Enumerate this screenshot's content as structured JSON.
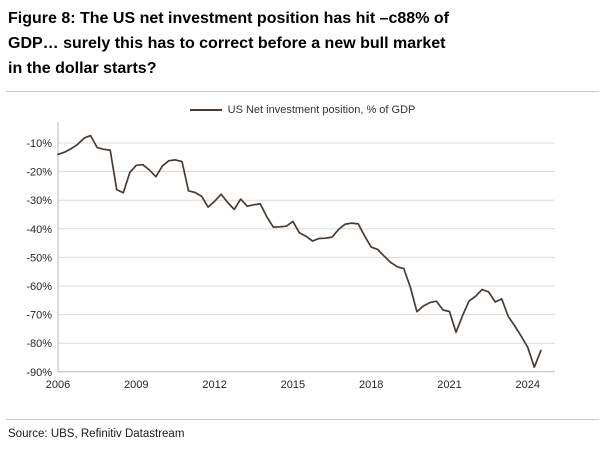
{
  "figure": {
    "title_lines": [
      "Figure 8: The US net investment position has hit –c88% of",
      "GDP… surely this has to correct before a new bull market",
      "in the dollar starts?"
    ]
  },
  "legend": {
    "label": "US Net investment position, % of GDP"
  },
  "source": {
    "text": "Source: UBS, Refinitiv Datastream"
  },
  "colors": {
    "line": "#473c33",
    "grid": "#dcdcdc",
    "axis": "#b8b8b8",
    "tick_text": "#262626"
  },
  "chart_data": {
    "type": "line",
    "title": "US Net investment position, % of GDP",
    "xlabel": "",
    "ylabel": "",
    "x_start": 2006.0,
    "x_step": 0.25,
    "x_end": 2024.5,
    "frequency": "quarterly",
    "grid": "horizontal",
    "legend_position": "top-center",
    "ylim": [
      -90,
      -4
    ],
    "y_tick_values": [
      -10,
      -20,
      -30,
      -40,
      -50,
      -60,
      -70,
      -80,
      -90
    ],
    "y_tick_labels": [
      "-10%",
      "-20%",
      "-30%",
      "-40%",
      "-50%",
      "-60%",
      "-70%",
      "-80%",
      "-90%"
    ],
    "x_tick_years": [
      2006,
      2009,
      2012,
      2015,
      2018,
      2021,
      2024
    ],
    "x_tick_labels": [
      "2006",
      "2009",
      "2012",
      "2015",
      "2018",
      "2021",
      "2024"
    ],
    "series": [
      {
        "name": "US Net investment position, % of GDP",
        "values": [
          -14.0,
          -13.2,
          -12.0,
          -10.5,
          -8.3,
          -7.4,
          -11.6,
          -12.2,
          -12.5,
          -26.3,
          -27.4,
          -20.3,
          -17.8,
          -17.6,
          -19.4,
          -21.8,
          -18.0,
          -16.2,
          -15.9,
          -16.5,
          -26.7,
          -27.3,
          -28.6,
          -32.4,
          -30.4,
          -27.9,
          -30.8,
          -33.2,
          -29.6,
          -32.1,
          -31.6,
          -31.3,
          -35.8,
          -39.4,
          -39.3,
          -39.1,
          -37.4,
          -41.4,
          -42.6,
          -44.3,
          -43.4,
          -43.3,
          -42.9,
          -40.2,
          -38.4,
          -38.0,
          -38.3,
          -42.6,
          -46.4,
          -47.2,
          -49.6,
          -51.8,
          -53.3,
          -53.9,
          -60.5,
          -69.0,
          -67.0,
          -65.8,
          -65.3,
          -68.4,
          -68.9,
          -76.2,
          -70.3,
          -65.2,
          -63.6,
          -61.2,
          -62.1,
          -65.6,
          -64.5,
          -70.6,
          -74.0,
          -77.6,
          -81.5,
          -88.4,
          -82.6
        ]
      }
    ]
  }
}
